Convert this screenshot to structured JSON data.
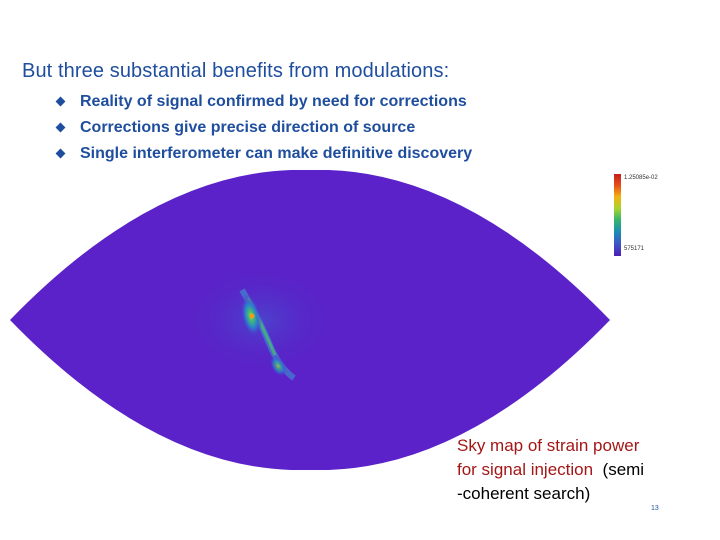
{
  "slide": {
    "title": "But three substantial benefits from modulations:",
    "bullets": [
      "Reality of signal confirmed by need for corrections",
      "Corrections give precise direction of source",
      "Single interferometer can make definitive discovery"
    ],
    "figure": {
      "colorbar_max_label": "1.25085e-02",
      "colorbar_min_label": "575171",
      "colorbar_colors": [
        "#c41e1e",
        "#e64f1a",
        "#f1b411",
        "#a8d42f",
        "#36b56a",
        "#1c8fb0",
        "#3d56c8",
        "#4b1fb6"
      ],
      "background_color": "#5a22c8"
    },
    "caption": {
      "line1": "Sky map of strain power",
      "line2_red": "for signal injection",
      "line2_black": "(semi",
      "line3": "-coherent search)"
    },
    "page_number": "13",
    "accent_color": "#1f4e9e"
  }
}
